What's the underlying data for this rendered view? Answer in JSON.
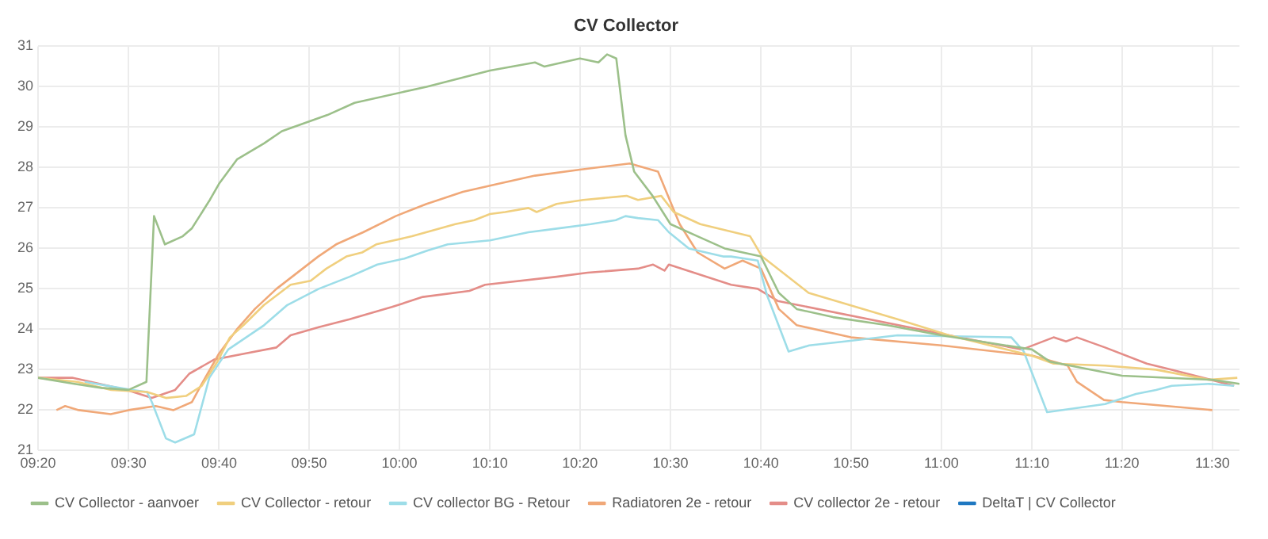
{
  "chart_data": {
    "type": "line",
    "title": "CV Collector",
    "xlim": [
      9.333,
      11.55
    ],
    "ylim": [
      21,
      31
    ],
    "xticks": [
      {
        "value": 9.333,
        "label": "09:20"
      },
      {
        "value": 9.5,
        "label": "09:30"
      },
      {
        "value": 9.667,
        "label": "09:40"
      },
      {
        "value": 9.833,
        "label": "09:50"
      },
      {
        "value": 10,
        "label": "10:00"
      },
      {
        "value": 10.167,
        "label": "10:10"
      },
      {
        "value": 10.333,
        "label": "10:20"
      },
      {
        "value": 10.5,
        "label": "10:30"
      },
      {
        "value": 10.667,
        "label": "10:40"
      },
      {
        "value": 10.833,
        "label": "10:50"
      },
      {
        "value": 11,
        "label": "11:00"
      },
      {
        "value": 11.167,
        "label": "11:10"
      },
      {
        "value": 11.333,
        "label": "11:20"
      },
      {
        "value": 11.5,
        "label": "11:30"
      }
    ],
    "yticks": [
      21,
      22,
      23,
      24,
      25,
      26,
      27,
      28,
      29,
      30,
      31
    ],
    "grid": true,
    "legend": "bottom",
    "marker": "none",
    "line_style": "solid",
    "series": [
      {
        "name": "CV Collector - aanvoer",
        "color": "#9cc08a",
        "x": [
          9.333,
          9.4,
          9.45,
          9.5,
          9.533,
          9.547,
          9.567,
          9.6,
          9.617,
          9.65,
          9.667,
          9.7,
          9.75,
          9.783,
          9.867,
          9.917,
          10.05,
          10.167,
          10.25,
          10.267,
          10.333,
          10.367,
          10.383,
          10.4,
          10.417,
          10.433,
          10.467,
          10.5,
          10.55,
          10.6,
          10.667,
          10.7,
          10.733,
          10.8,
          10.9,
          11,
          11.167,
          11.2,
          11.333,
          11.5,
          11.55
        ],
        "values": [
          22.8,
          22.65,
          22.55,
          22.5,
          22.7,
          26.8,
          26.1,
          26.3,
          26.5,
          27.2,
          27.6,
          28.2,
          28.6,
          28.9,
          29.3,
          29.6,
          30,
          30.4,
          30.6,
          30.5,
          30.7,
          30.6,
          30.8,
          30.7,
          28.8,
          27.9,
          27.3,
          26.6,
          26.3,
          26,
          25.8,
          24.9,
          24.5,
          24.3,
          24.1,
          23.85,
          23.5,
          23.2,
          22.85,
          22.75,
          22.65
        ]
      },
      {
        "name": "CV Collector - retour",
        "color": "#f0cf7e",
        "x": [
          9.333,
          9.405,
          9.468,
          9.534,
          9.569,
          9.606,
          9.635,
          9.664,
          9.687,
          9.712,
          9.75,
          9.799,
          9.836,
          9.865,
          9.902,
          9.931,
          9.957,
          10.023,
          10.103,
          10.138,
          10.167,
          10.195,
          10.238,
          10.253,
          10.29,
          10.339,
          10.419,
          10.44,
          10.483,
          10.506,
          10.555,
          10.647,
          10.669,
          10.755,
          10.919,
          11.014,
          11.166,
          11.207,
          11.302,
          11.396,
          11.494,
          11.546
        ],
        "values": [
          22.8,
          22.7,
          22.5,
          22.45,
          22.3,
          22.35,
          22.6,
          23.2,
          23.8,
          24.1,
          24.6,
          25.1,
          25.2,
          25.5,
          25.8,
          25.9,
          26.1,
          26.3,
          26.6,
          26.7,
          26.85,
          26.9,
          27,
          26.9,
          27.1,
          27.2,
          27.3,
          27.2,
          27.3,
          26.9,
          26.6,
          26.3,
          25.8,
          24.9,
          24.25,
          23.85,
          23.35,
          23.15,
          23.1,
          23,
          22.75,
          22.8
        ]
      },
      {
        "name": "CV collector BG - Retour",
        "color": "#9ddde8",
        "x": [
          9.419,
          9.505,
          9.534,
          9.543,
          9.569,
          9.586,
          9.621,
          9.649,
          9.684,
          9.75,
          9.793,
          9.851,
          9.908,
          9.959,
          10.009,
          10.052,
          10.089,
          10.167,
          10.238,
          10.296,
          10.353,
          10.399,
          10.417,
          10.44,
          10.477,
          10.497,
          10.534,
          10.597,
          10.612,
          10.661,
          10.678,
          10.718,
          10.756,
          10.822,
          10.919,
          11.129,
          11.152,
          11.195,
          11.302,
          11.359,
          11.396,
          11.425,
          11.494,
          11.54
        ],
        "values": [
          22.7,
          22.5,
          22.45,
          22.2,
          21.3,
          21.2,
          21.4,
          22.8,
          23.5,
          24.1,
          24.6,
          25,
          25.3,
          25.6,
          25.75,
          25.95,
          26.1,
          26.2,
          26.4,
          26.5,
          26.6,
          26.7,
          26.8,
          26.75,
          26.7,
          26.4,
          26,
          25.8,
          25.8,
          25.7,
          24.85,
          23.45,
          23.6,
          23.7,
          23.85,
          23.8,
          23.45,
          21.95,
          22.15,
          22.4,
          22.5,
          22.6,
          22.65,
          22.6
        ]
      },
      {
        "name": "Radiatoren 2e - retour",
        "color": "#f0a878",
        "x": [
          9.367,
          9.383,
          9.408,
          9.467,
          9.5,
          9.55,
          9.583,
          9.617,
          9.633,
          9.667,
          9.7,
          9.733,
          9.773,
          9.85,
          9.883,
          9.933,
          9.993,
          10.05,
          10.117,
          10.183,
          10.25,
          10.333,
          10.425,
          10.477,
          10.517,
          10.55,
          10.6,
          10.633,
          10.667,
          10.7,
          10.733,
          10.833,
          11,
          11.167,
          11.233,
          11.25,
          11.3,
          11.333,
          11.5
        ],
        "values": [
          22,
          22.1,
          22,
          21.9,
          22,
          22.1,
          22,
          22.2,
          22.6,
          23.4,
          24,
          24.5,
          25,
          25.8,
          26.1,
          26.4,
          26.8,
          27.1,
          27.4,
          27.6,
          27.8,
          27.95,
          28.1,
          27.9,
          26.6,
          25.9,
          25.5,
          25.7,
          25.5,
          24.5,
          24.1,
          23.8,
          23.6,
          23.35,
          23.1,
          22.7,
          22.25,
          22.2,
          22
        ]
      },
      {
        "name": "CV collector 2e - retour",
        "color": "#e48d88",
        "x": [
          9.333,
          9.396,
          9.497,
          9.543,
          9.586,
          9.612,
          9.658,
          9.715,
          9.773,
          9.799,
          9.851,
          9.908,
          9.986,
          10.043,
          10.129,
          10.158,
          10.29,
          10.347,
          10.44,
          10.468,
          10.489,
          10.497,
          10.612,
          10.661,
          10.698,
          11.014,
          11.149,
          11.207,
          11.23,
          11.25,
          11.302,
          11.379,
          11.425,
          11.54
        ],
        "values": [
          22.8,
          22.8,
          22.5,
          22.3,
          22.5,
          22.9,
          23.25,
          23.4,
          23.55,
          23.85,
          24.05,
          24.25,
          24.55,
          24.8,
          24.95,
          25.1,
          25.3,
          25.4,
          25.5,
          25.6,
          25.45,
          25.6,
          25.1,
          25,
          24.7,
          23.85,
          23.5,
          23.8,
          23.7,
          23.8,
          23.55,
          23.15,
          23,
          22.6
        ]
      },
      {
        "name": "DeltaT | CV Collector",
        "color": "#1f78c1"
      }
    ]
  }
}
